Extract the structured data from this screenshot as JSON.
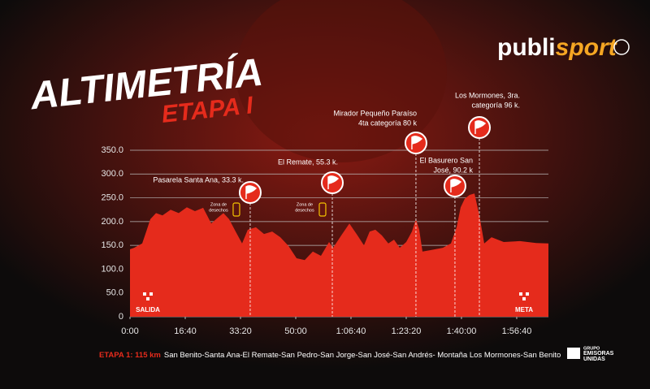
{
  "chart_data": {
    "type": "area",
    "title": "ALTIMETRÍA",
    "subtitle": "ETAPA I",
    "brand": {
      "name": "publi",
      "accent": "sport",
      "group": [
        "GRUPO",
        "EMISORAS",
        "UNIDAS"
      ]
    },
    "color": "#e52b1c",
    "grid": true,
    "xlim": [
      0,
      7574
    ],
    "ylim": [
      0,
      350
    ],
    "yticks": [
      0,
      {
        "value": 50,
        "label": "50.0"
      },
      {
        "value": 100,
        "label": "100.0"
      },
      {
        "value": 150,
        "label": "150.0"
      },
      {
        "value": 200,
        "label": "200.0"
      },
      {
        "value": 250,
        "label": "250.0"
      },
      {
        "value": 300,
        "label": "300.0"
      },
      {
        "value": 350,
        "label": "350.0"
      }
    ],
    "xticks": [
      {
        "value": 0,
        "label": "0:00"
      },
      {
        "value": 1000,
        "label": "16:40"
      },
      {
        "value": 2000,
        "label": "33:20"
      },
      {
        "value": 3000,
        "label": "50:00"
      },
      {
        "value": 4000,
        "label": "1:06:40"
      },
      {
        "value": 5000,
        "label": "1:23:20"
      },
      {
        "value": 6000,
        "label": "1:40:00"
      },
      {
        "value": 7000,
        "label": "1:56:40"
      }
    ],
    "x": [
      0,
      74,
      221,
      294,
      368,
      471,
      588,
      735,
      882,
      1029,
      1176,
      1324,
      1471,
      1588,
      1691,
      1794,
      1912,
      2029,
      2132,
      2279,
      2426,
      2574,
      2721,
      2868,
      3015,
      3162,
      3309,
      3456,
      3603,
      3676,
      3824,
      3971,
      4118,
      4235,
      4338,
      4441,
      4559,
      4676,
      4779,
      4882,
      5000,
      5103,
      5176,
      5235,
      5294,
      5441,
      5662,
      5809,
      5912,
      5985,
      6059,
      6147,
      6235,
      6324,
      6412,
      6544,
      6765,
      7059,
      7353,
      7574
    ],
    "values": [
      142,
      145,
      154,
      179,
      205,
      218,
      213,
      225,
      218,
      230,
      222,
      229,
      196,
      208,
      218,
      205,
      179,
      154,
      183,
      188,
      174,
      179,
      167,
      149,
      123,
      119,
      137,
      128,
      157,
      145,
      171,
      196,
      171,
      150,
      179,
      183,
      171,
      154,
      162,
      145,
      157,
      179,
      205,
      183,
      137,
      140,
      145,
      154,
      188,
      230,
      248,
      256,
      259,
      213,
      154,
      167,
      157,
      159,
      155,
      154
    ],
    "annotations": [
      {
        "text": [
          "Pasarela Santa Ana, 33.3 k."
        ],
        "x": 2176
      },
      {
        "text": [
          "El Remate, 55.3 k."
        ],
        "x": 3662
      },
      {
        "text": [
          "Mirador Pequeño Paraíso",
          "4ta categoría 80 k"
        ],
        "x": 5176
      },
      {
        "text": [
          "El Basurero San",
          "José, 90.2 k"
        ],
        "x": 5882
      },
      {
        "text": [
          "Los Mormones, 3ra.",
          "categoría 96 k."
        ],
        "x": 6324
      }
    ],
    "waste_zones": [
      {
        "text": [
          "Zona de",
          "desechos"
        ],
        "x": 1926
      },
      {
        "text": [
          "Zona de",
          "desechos"
        ],
        "x": 3485
      }
    ],
    "start": "SALIDA",
    "finish": "META",
    "footer": {
      "label": "ETAPA 1: 115 km",
      "route": "San Benito-Santa Ana-El Remate-San Pedro-San Jorge-San José-San Andrés- Montaña Los Mormones-San Benito"
    }
  }
}
